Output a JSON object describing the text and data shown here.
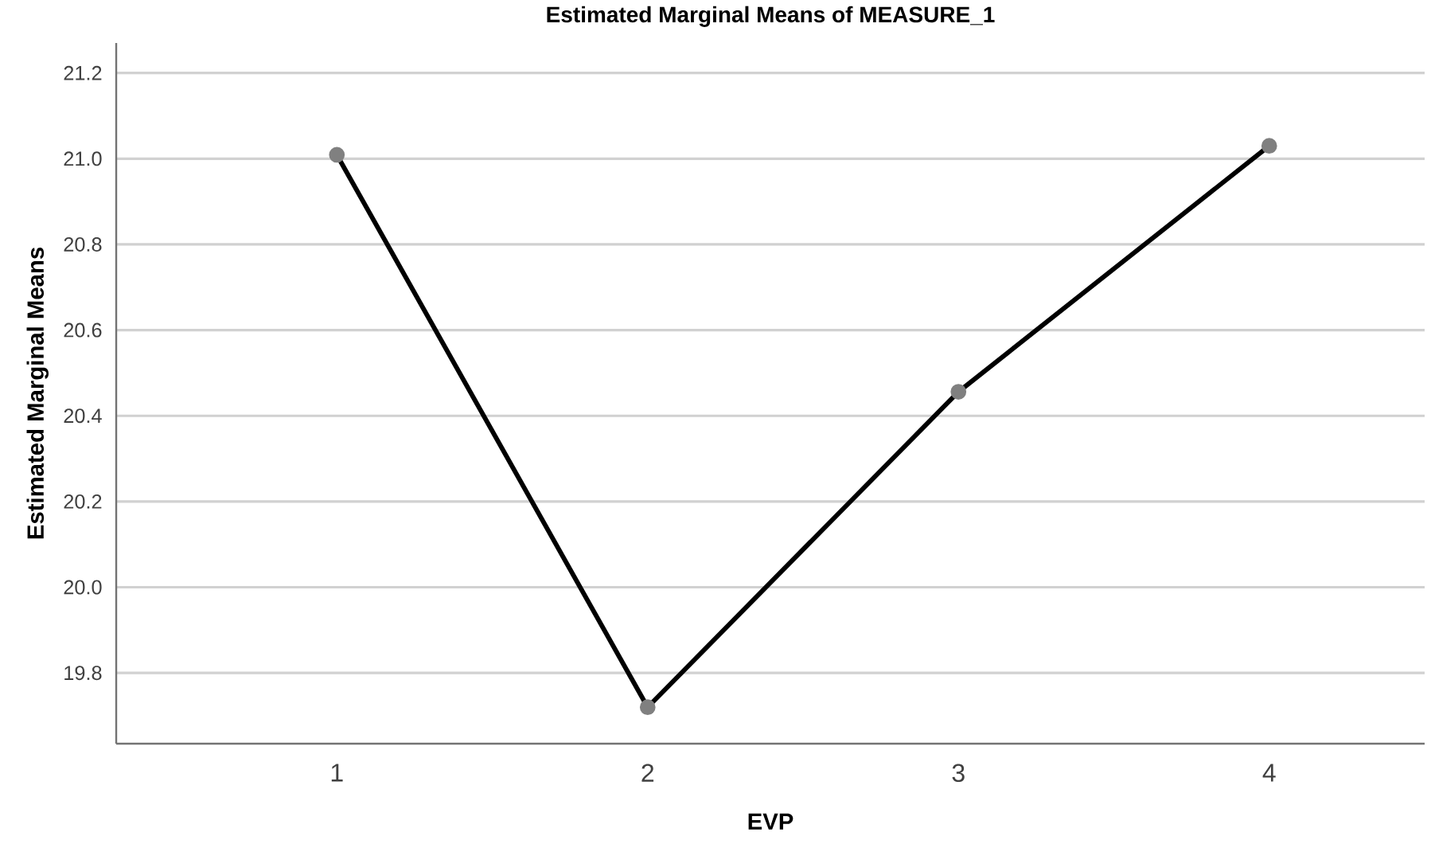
{
  "chart_data": {
    "type": "line",
    "title": "Estimated Marginal Means of MEASURE_1",
    "xlabel": "EVP",
    "ylabel": "Estimated Marginal Means",
    "categories": [
      "1",
      "2",
      "3",
      "4"
    ],
    "series": [
      {
        "color": "#000000",
        "values": [
          21.009,
          19.72,
          20.456,
          21.03
        ]
      }
    ],
    "marker": "circle",
    "line_style": "solid",
    "grid": "y",
    "legend": false,
    "ylim": [
      19.635,
      21.27
    ],
    "yticks": [
      {
        "value": 19.8,
        "label": "19.8"
      },
      {
        "value": 20.0,
        "label": "20.0"
      },
      {
        "value": 20.2,
        "label": "20.2"
      },
      {
        "value": 20.4,
        "label": "20.4"
      },
      {
        "value": 20.6,
        "label": "20.6"
      },
      {
        "value": 20.8,
        "label": "20.8"
      },
      {
        "value": 21.0,
        "label": "21.0"
      },
      {
        "value": 21.2,
        "label": "21.2"
      }
    ]
  }
}
